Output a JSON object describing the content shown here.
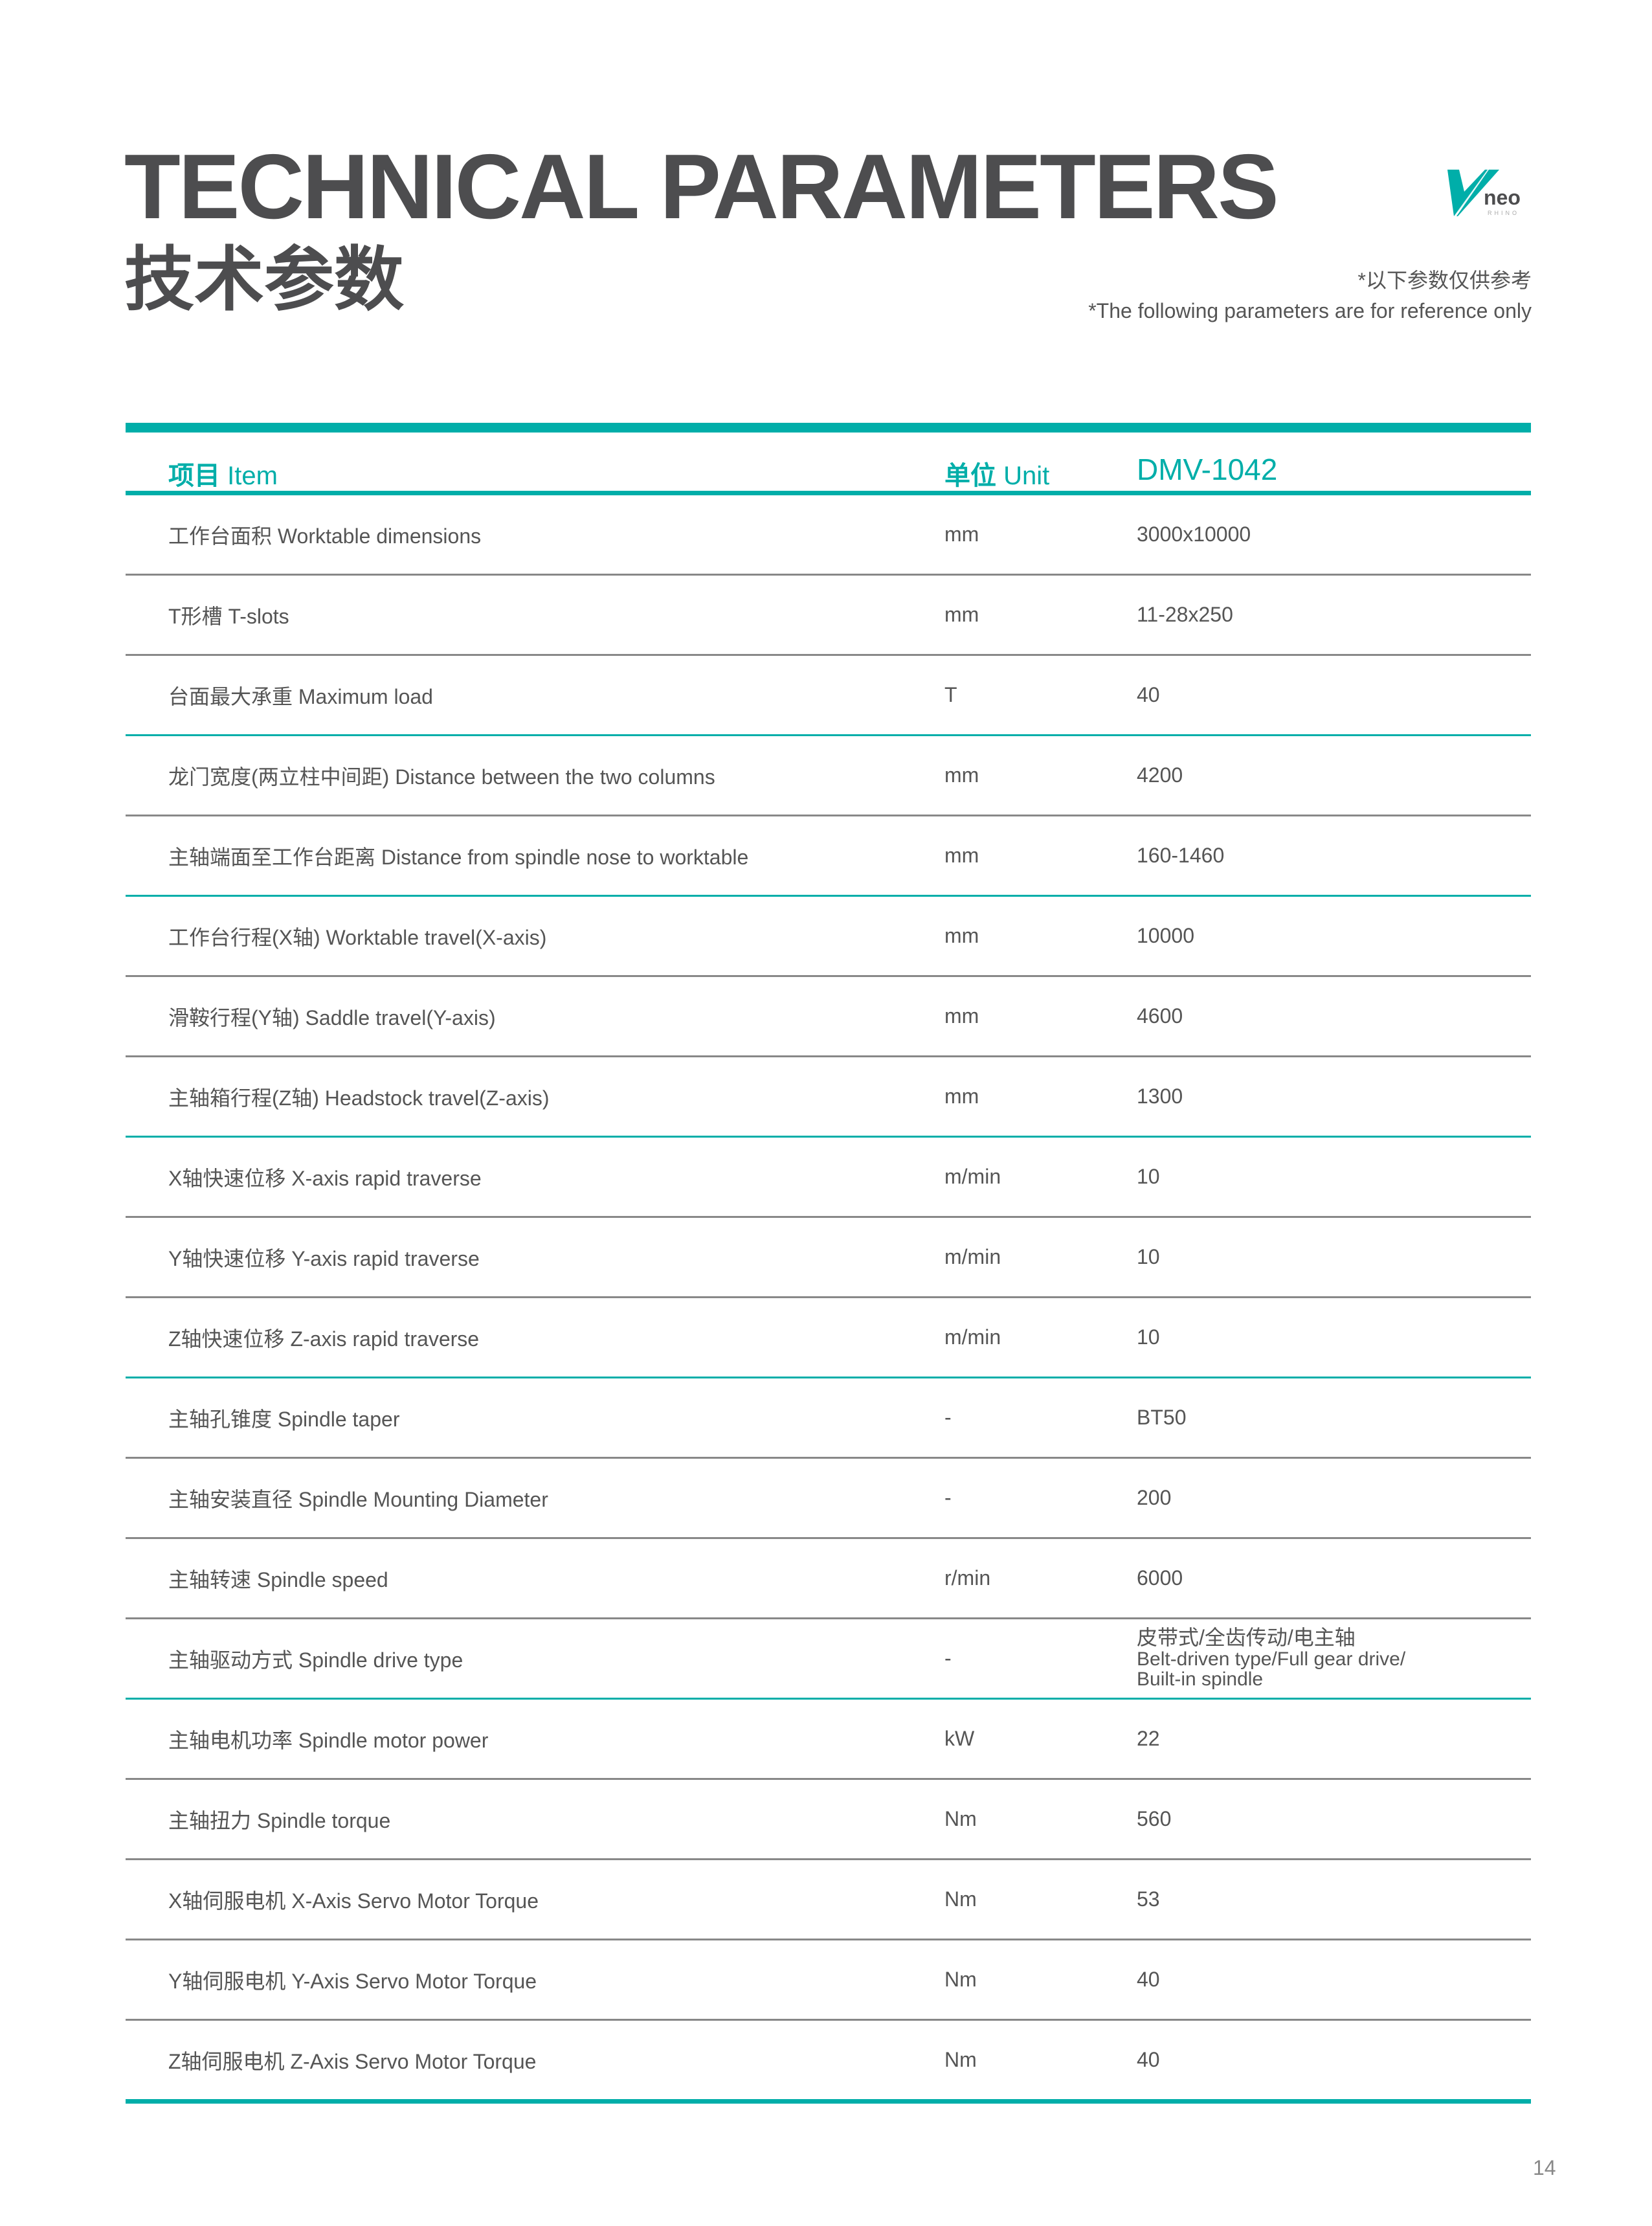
{
  "header": {
    "title_en": "TECHNICAL PARAMETERS",
    "title_cn": "技术参数",
    "note_cn": "*以下参数仅供参考",
    "note_en": "*The following parameters are for reference only",
    "logo": {
      "text": "neo",
      "subtext": "RHINO",
      "color": "#00aea9"
    }
  },
  "table": {
    "columns": {
      "item_cn": "项目",
      "item_en": "Item",
      "unit_cn": "单位",
      "unit_en": "Unit",
      "model": "DMV-1042"
    },
    "accent_color": "#00aea9",
    "rows": [
      {
        "item": "工作台面积 Worktable dimensions",
        "unit": "mm",
        "value": "3000x10000"
      },
      {
        "item": "T形槽 T-slots",
        "unit": "mm",
        "value": "11-28x250"
      },
      {
        "item": "台面最大承重 Maximum load",
        "unit": "T",
        "value": "40"
      },
      {
        "item": "龙门宽度(两立柱中间距) Distance between the two columns",
        "unit": "mm",
        "value": "4200"
      },
      {
        "item": "主轴端面至工作台距离 Distance from spindle nose to worktable",
        "unit": "mm",
        "value": "160-1460"
      },
      {
        "item": "工作台行程(X轴) Worktable travel(X-axis)",
        "unit": "mm",
        "value": "10000"
      },
      {
        "item": "滑鞍行程(Y轴) Saddle travel(Y-axis)",
        "unit": "mm",
        "value": "4600"
      },
      {
        "item": "主轴箱行程(Z轴) Headstock travel(Z-axis)",
        "unit": "mm",
        "value": "1300"
      },
      {
        "item": "X轴快速位移 X-axis rapid traverse",
        "unit": "m/min",
        "value": "10"
      },
      {
        "item": "Y轴快速位移 Y-axis rapid traverse",
        "unit": "m/min",
        "value": "10"
      },
      {
        "item": "Z轴快速位移 Z-axis rapid traverse",
        "unit": "m/min",
        "value": "10"
      },
      {
        "item": "主轴孔锥度 Spindle taper",
        "unit": "-",
        "value": "BT50"
      },
      {
        "item": "主轴安装直径 Spindle Mounting Diameter",
        "unit": "-",
        "value": "200"
      },
      {
        "item": "主轴转速 Spindle speed",
        "unit": "r/min",
        "value": "6000"
      },
      {
        "item": "主轴驱动方式 Spindle drive type",
        "unit": "-",
        "value_cn": "皮带式/全齿传动/电主轴",
        "value_en1": "Belt-driven type/Full gear drive/",
        "value_en2": "Built-in spindle"
      },
      {
        "item": "主轴电机功率 Spindle motor power",
        "unit": "kW",
        "value": "22"
      },
      {
        "item": "主轴扭力 Spindle torque",
        "unit": "Nm",
        "value": "560"
      },
      {
        "item": "X轴伺服电机 X-Axis Servo Motor Torque",
        "unit": "Nm",
        "value": "53"
      },
      {
        "item": "Y轴伺服电机 Y-Axis Servo Motor Torque",
        "unit": "Nm",
        "value": "40"
      },
      {
        "item": "Z轴伺服电机 Z-Axis Servo Motor Torque",
        "unit": "Nm",
        "value": "40"
      }
    ]
  },
  "footer": {
    "page_number": "14"
  }
}
